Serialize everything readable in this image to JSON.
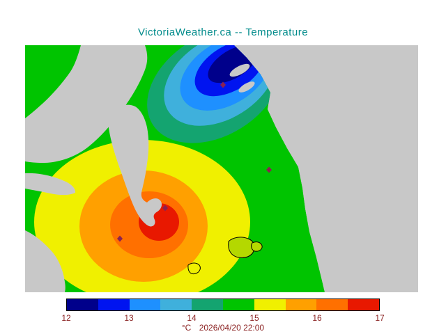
{
  "title": {
    "text": "VictoriaWeather.ca -- Temperature",
    "color": "#008b8b"
  },
  "palette": {
    "water_gray": "#c8c8c8",
    "navy": "#00008b",
    "blue": "#0014f0",
    "medium_blue": "#1e90ff",
    "light_blue": "#3fb0dc",
    "teal_green": "#14a470",
    "green": "#00c400",
    "yellow": "#f0f000",
    "orange": "#ffa000",
    "dark_orange": "#ff7000",
    "red": "#e81800",
    "marker": "#8b2252",
    "island": "#b4d800",
    "coastline": "#000000"
  },
  "colorbar": {
    "unit": "°C",
    "timestamp": "2026/04/20 22:00",
    "tick_labels": [
      "12",
      "13",
      "14",
      "15",
      "16",
      "17"
    ],
    "segment_colors": [
      "#00008b",
      "#0014f0",
      "#1e90ff",
      "#3fb0dc",
      "#14a470",
      "#00c400",
      "#f0f000",
      "#ffa000",
      "#ff7000",
      "#e81800"
    ],
    "label_color": "#8b2323",
    "border_color": "#000000"
  },
  "chart_data": {
    "type": "heatmap",
    "title": "VictoriaWeather.ca -- Temperature",
    "unit": "°C",
    "timestamp": "2026/04/20 22:00",
    "scale_min": 12,
    "scale_max": 17,
    "scale_step": 0.5,
    "scale_ticks": [
      12,
      13,
      14,
      15,
      16,
      17
    ],
    "legend_position": "bottom",
    "regions": [
      {
        "name": "north-cold-zone",
        "approx_temp_c": "12 to 14",
        "color_bands": "navy-blue-cyan"
      },
      {
        "name": "background-field",
        "approx_temp_c": "14.5 to 15",
        "color_bands": "green"
      },
      {
        "name": "south-warm-bullseye",
        "approx_temp_c": "15 to 17",
        "color_bands": "yellow-orange-red"
      }
    ]
  }
}
